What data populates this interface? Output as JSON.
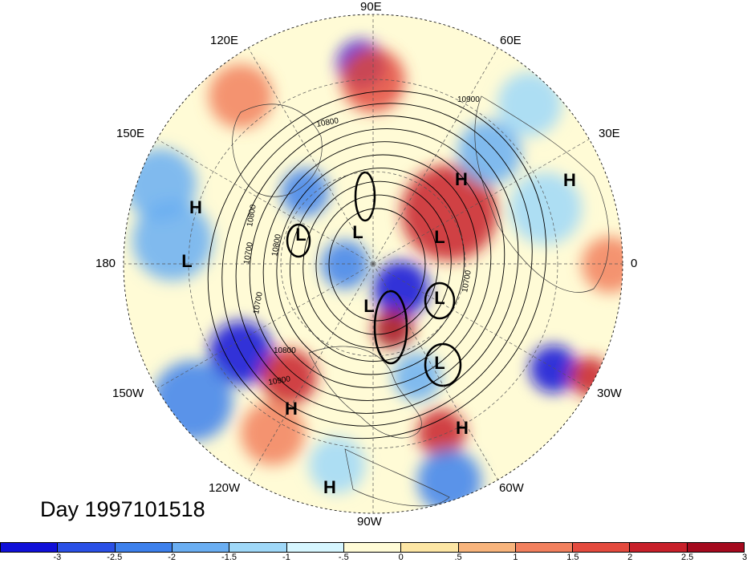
{
  "date_label": "Day 1997101518",
  "lon_labels": [
    "90E",
    "60E",
    "30E",
    "0",
    "30W",
    "60W",
    "90W",
    "120W",
    "150W",
    "180",
    "150E",
    "120E"
  ],
  "pressure_centers": [
    {
      "type": "H",
      "label": "H"
    },
    {
      "type": "H",
      "label": "H"
    },
    {
      "type": "H",
      "label": "H"
    },
    {
      "type": "L",
      "label": "L"
    },
    {
      "type": "L",
      "label": "L"
    },
    {
      "type": "L",
      "label": "L"
    },
    {
      "type": "L",
      "label": "L"
    },
    {
      "type": "L",
      "label": "L"
    },
    {
      "type": "L",
      "label": "L"
    },
    {
      "type": "L",
      "label": "L"
    },
    {
      "type": "H",
      "label": "H"
    },
    {
      "type": "H",
      "label": "H"
    },
    {
      "type": "H",
      "label": "H"
    }
  ],
  "contour_labels": [
    "10900",
    "10800",
    "10800",
    "10700",
    "10700",
    "10800",
    "10900",
    "10700",
    "10800"
  ],
  "colorbar": {
    "colors": [
      "#1010d8",
      "#2a50e6",
      "#3d80ec",
      "#6aaef2",
      "#9fd8f8",
      "#d6f6ff",
      "#fffbd6",
      "#fde6a4",
      "#f8b47c",
      "#f2805e",
      "#e44a3e",
      "#c8202a",
      "#a50a1e"
    ],
    "ticks": [
      "-3",
      "-2.5",
      "-2",
      "-1.5",
      "-1",
      "-.5",
      "0",
      ".5",
      "1",
      "1.5",
      "2",
      "2.5",
      "3"
    ]
  }
}
